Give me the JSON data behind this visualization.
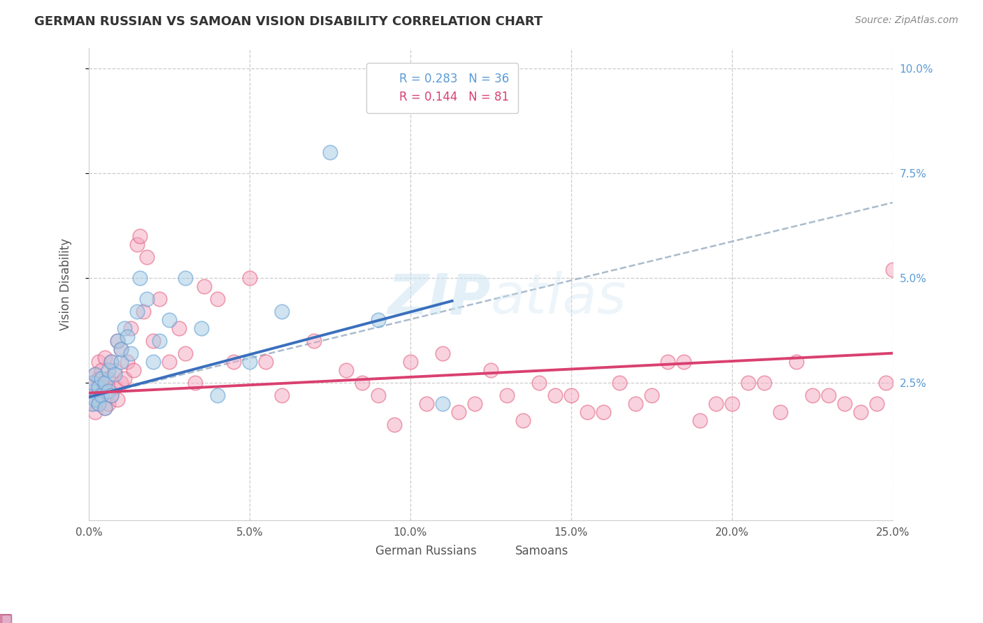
{
  "title": "GERMAN RUSSIAN VS SAMOAN VISION DISABILITY CORRELATION CHART",
  "source": "Source: ZipAtlas.com",
  "ylabel": "Vision Disability",
  "xlim": [
    0.0,
    0.25
  ],
  "ylim": [
    -0.008,
    0.105
  ],
  "color_blue": "#a8cce4",
  "color_pink": "#f4a6c0",
  "color_blue_edge": "#5b9bd5",
  "color_pink_edge": "#e05070",
  "color_blue_line": "#3a6fbd",
  "color_pink_line": "#d94070",
  "color_dashed": "#aabbcc",
  "background": "#ffffff",
  "gr_x": [
    0.001,
    0.001,
    0.001,
    0.002,
    0.002,
    0.003,
    0.003,
    0.004,
    0.004,
    0.005,
    0.005,
    0.006,
    0.006,
    0.007,
    0.007,
    0.008,
    0.009,
    0.01,
    0.01,
    0.011,
    0.012,
    0.013,
    0.015,
    0.016,
    0.018,
    0.02,
    0.022,
    0.025,
    0.03,
    0.035,
    0.04,
    0.05,
    0.06,
    0.075,
    0.09,
    0.11
  ],
  "gr_y": [
    0.02,
    0.023,
    0.025,
    0.021,
    0.027,
    0.02,
    0.024,
    0.022,
    0.026,
    0.019,
    0.025,
    0.023,
    0.028,
    0.022,
    0.03,
    0.027,
    0.035,
    0.03,
    0.033,
    0.038,
    0.036,
    0.032,
    0.042,
    0.05,
    0.045,
    0.03,
    0.035,
    0.04,
    0.05,
    0.038,
    0.022,
    0.03,
    0.042,
    0.08,
    0.04,
    0.02
  ],
  "sam_x": [
    0.001,
    0.001,
    0.001,
    0.002,
    0.002,
    0.002,
    0.003,
    0.003,
    0.003,
    0.004,
    0.004,
    0.005,
    0.005,
    0.005,
    0.006,
    0.006,
    0.007,
    0.007,
    0.008,
    0.008,
    0.009,
    0.009,
    0.01,
    0.01,
    0.011,
    0.012,
    0.013,
    0.014,
    0.015,
    0.016,
    0.017,
    0.018,
    0.02,
    0.022,
    0.025,
    0.028,
    0.03,
    0.033,
    0.036,
    0.04,
    0.045,
    0.05,
    0.055,
    0.06,
    0.07,
    0.08,
    0.09,
    0.1,
    0.11,
    0.12,
    0.13,
    0.14,
    0.15,
    0.16,
    0.17,
    0.18,
    0.19,
    0.2,
    0.21,
    0.22,
    0.23,
    0.24,
    0.245,
    0.248,
    0.25,
    0.085,
    0.095,
    0.105,
    0.115,
    0.125,
    0.135,
    0.145,
    0.155,
    0.165,
    0.175,
    0.185,
    0.195,
    0.205,
    0.215,
    0.225,
    0.235
  ],
  "sam_y": [
    0.022,
    0.025,
    0.02,
    0.023,
    0.018,
    0.027,
    0.02,
    0.026,
    0.03,
    0.022,
    0.028,
    0.019,
    0.024,
    0.031,
    0.02,
    0.026,
    0.022,
    0.03,
    0.024,
    0.028,
    0.021,
    0.035,
    0.025,
    0.033,
    0.026,
    0.03,
    0.038,
    0.028,
    0.058,
    0.06,
    0.042,
    0.055,
    0.035,
    0.045,
    0.03,
    0.038,
    0.032,
    0.025,
    0.048,
    0.045,
    0.03,
    0.05,
    0.03,
    0.022,
    0.035,
    0.028,
    0.022,
    0.03,
    0.032,
    0.02,
    0.022,
    0.025,
    0.022,
    0.018,
    0.02,
    0.03,
    0.016,
    0.02,
    0.025,
    0.03,
    0.022,
    0.018,
    0.02,
    0.025,
    0.052,
    0.025,
    0.015,
    0.02,
    0.018,
    0.028,
    0.016,
    0.022,
    0.018,
    0.025,
    0.022,
    0.03,
    0.02,
    0.025,
    0.018,
    0.022,
    0.02
  ],
  "blue_line_x": [
    0.0,
    0.113
  ],
  "blue_line_y": [
    0.0215,
    0.0445
  ],
  "dashed_line_x": [
    0.0,
    0.25
  ],
  "dashed_line_y": [
    0.0215,
    0.068
  ],
  "pink_line_x": [
    0.0,
    0.25
  ],
  "pink_line_y": [
    0.0225,
    0.032
  ]
}
